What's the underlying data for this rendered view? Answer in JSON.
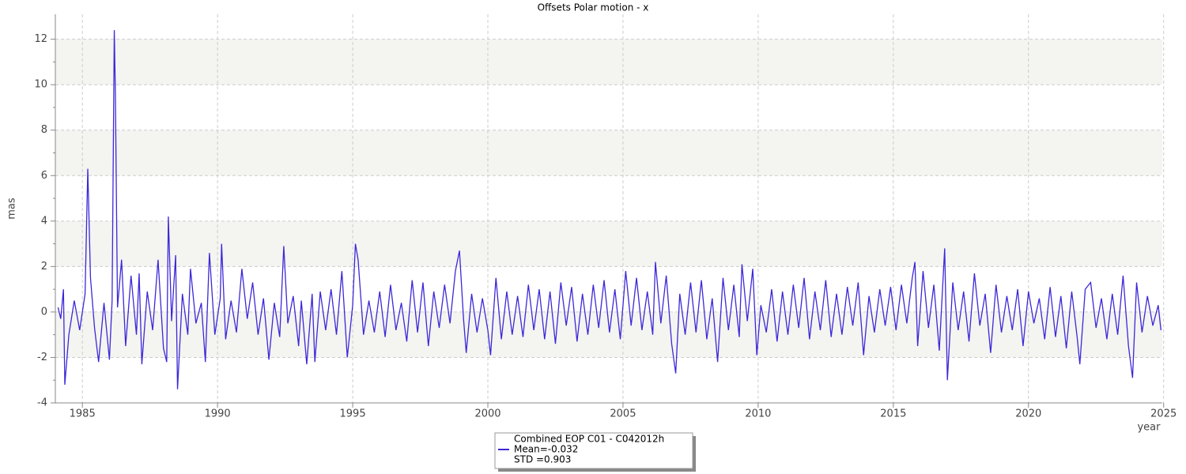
{
  "chart_data": {
    "type": "line",
    "title": "Offsets Polar motion - x",
    "y_label": "mas",
    "x_label": "year",
    "xlim": [
      1984.0,
      2024.95
    ],
    "ylim": [
      -4,
      13.1
    ],
    "xticks": [
      1985,
      1990,
      1995,
      2000,
      2005,
      2010,
      2015,
      2020,
      2025
    ],
    "yticks": [
      -4,
      -2,
      0,
      2,
      4,
      6,
      8,
      10,
      12
    ],
    "grid": true,
    "legend": "bottom",
    "legend_notes": [
      "Mean=-0.032",
      "STD =0.903"
    ],
    "x": [
      1984.1,
      1984.2,
      1984.3,
      1984.35,
      1984.5,
      1984.7,
      1984.9,
      1985.1,
      1985.2,
      1985.3,
      1985.45,
      1985.6,
      1985.8,
      1986.0,
      1986.1,
      1986.18,
      1986.22,
      1986.3,
      1986.45,
      1986.6,
      1986.8,
      1987.0,
      1987.1,
      1987.2,
      1987.4,
      1987.6,
      1987.8,
      1988.0,
      1988.12,
      1988.18,
      1988.3,
      1988.45,
      1988.52,
      1988.7,
      1988.9,
      1989.0,
      1989.2,
      1989.4,
      1989.55,
      1989.7,
      1989.9,
      1990.1,
      1990.15,
      1990.3,
      1990.5,
      1990.7,
      1990.9,
      1991.1,
      1991.3,
      1991.5,
      1991.7,
      1991.9,
      1992.1,
      1992.3,
      1992.45,
      1992.6,
      1992.8,
      1993.0,
      1993.1,
      1993.3,
      1993.5,
      1993.6,
      1993.8,
      1994.0,
      1994.2,
      1994.4,
      1994.6,
      1994.8,
      1995.0,
      1995.1,
      1995.2,
      1995.4,
      1995.6,
      1995.8,
      1996.0,
      1996.2,
      1996.4,
      1996.6,
      1996.8,
      1997.0,
      1997.2,
      1997.4,
      1997.6,
      1997.8,
      1998.0,
      1998.2,
      1998.4,
      1998.6,
      1998.8,
      1998.95,
      1999.1,
      1999.2,
      1999.4,
      1999.6,
      1999.8,
      2000.0,
      2000.1,
      2000.3,
      2000.5,
      2000.7,
      2000.9,
      2001.1,
      2001.3,
      2001.5,
      2001.7,
      2001.9,
      2002.1,
      2002.3,
      2002.5,
      2002.7,
      2002.9,
      2003.1,
      2003.3,
      2003.5,
      2003.7,
      2003.9,
      2004.1,
      2004.3,
      2004.5,
      2004.7,
      2004.9,
      2005.1,
      2005.3,
      2005.5,
      2005.7,
      2005.9,
      2006.1,
      2006.2,
      2006.4,
      2006.6,
      2006.8,
      2006.95,
      2007.1,
      2007.3,
      2007.5,
      2007.7,
      2007.9,
      2008.1,
      2008.3,
      2008.5,
      2008.7,
      2008.9,
      2009.1,
      2009.3,
      2009.4,
      2009.6,
      2009.8,
      2009.95,
      2010.1,
      2010.3,
      2010.5,
      2010.7,
      2010.9,
      2011.1,
      2011.3,
      2011.5,
      2011.7,
      2011.9,
      2012.1,
      2012.3,
      2012.5,
      2012.7,
      2012.9,
      2013.1,
      2013.3,
      2013.5,
      2013.7,
      2013.9,
      2014.1,
      2014.3,
      2014.5,
      2014.7,
      2014.9,
      2015.1,
      2015.3,
      2015.5,
      2015.7,
      2015.8,
      2015.9,
      2016.1,
      2016.3,
      2016.5,
      2016.7,
      2016.9,
      2017.0,
      2017.2,
      2017.4,
      2017.6,
      2017.8,
      2018.0,
      2018.2,
      2018.4,
      2018.6,
      2018.8,
      2019.0,
      2019.2,
      2019.4,
      2019.6,
      2019.8,
      2020.0,
      2020.2,
      2020.4,
      2020.6,
      2020.8,
      2021.0,
      2021.2,
      2021.4,
      2021.6,
      2021.8,
      2021.9,
      2022.1,
      2022.3,
      2022.5,
      2022.7,
      2022.9,
      2023.1,
      2023.3,
      2023.5,
      2023.7,
      2023.85,
      2024.0,
      2024.2,
      2024.4,
      2024.6,
      2024.8,
      2024.9
    ],
    "series": [
      {
        "name": "Combined EOP C01 - C042012h",
        "color": "#3c28d8",
        "values": [
          0.2,
          -0.3,
          1.0,
          -3.2,
          -1.0,
          0.5,
          -0.8,
          0.8,
          6.3,
          1.5,
          -0.7,
          -2.2,
          0.4,
          -2.1,
          0.5,
          12.4,
          9.7,
          0.2,
          2.3,
          -1.5,
          1.6,
          -1.0,
          1.7,
          -2.3,
          0.9,
          -0.8,
          2.3,
          -1.6,
          -2.2,
          4.2,
          -0.4,
          2.5,
          -3.4,
          0.8,
          -1.0,
          1.9,
          -0.5,
          0.4,
          -2.2,
          2.6,
          -1.0,
          0.6,
          3.0,
          -1.2,
          0.5,
          -0.9,
          1.9,
          -0.3,
          1.3,
          -1.0,
          0.6,
          -2.1,
          0.4,
          -1.1,
          2.9,
          -0.5,
          0.7,
          -1.5,
          0.5,
          -2.3,
          0.8,
          -2.2,
          0.9,
          -0.8,
          1.0,
          -1.0,
          1.8,
          -2.0,
          0.3,
          3.0,
          2.3,
          -1.0,
          0.5,
          -0.9,
          0.9,
          -1.1,
          1.2,
          -0.8,
          0.4,
          -1.3,
          1.4,
          -0.9,
          1.3,
          -1.5,
          0.9,
          -0.7,
          1.2,
          -0.5,
          1.8,
          2.7,
          -0.3,
          -1.8,
          0.8,
          -0.9,
          0.6,
          -0.8,
          -1.9,
          1.5,
          -1.2,
          0.9,
          -1.0,
          0.7,
          -1.1,
          1.2,
          -0.8,
          1.0,
          -1.2,
          0.9,
          -1.4,
          1.3,
          -0.6,
          1.1,
          -1.3,
          0.8,
          -1.0,
          1.2,
          -0.7,
          1.4,
          -0.9,
          1.0,
          -1.2,
          1.8,
          -0.6,
          1.5,
          -0.8,
          0.9,
          -1.0,
          2.2,
          -0.5,
          1.6,
          -1.4,
          -2.7,
          0.8,
          -1.0,
          1.3,
          -0.9,
          1.4,
          -1.2,
          0.6,
          -2.2,
          1.5,
          -0.8,
          1.2,
          -1.1,
          2.1,
          -0.4,
          1.9,
          -1.9,
          0.3,
          -0.9,
          1.0,
          -1.3,
          0.9,
          -1.0,
          1.2,
          -0.7,
          1.5,
          -1.2,
          0.9,
          -0.8,
          1.4,
          -1.1,
          0.8,
          -1.0,
          1.1,
          -0.6,
          1.3,
          -1.9,
          0.7,
          -0.9,
          1.0,
          -0.6,
          1.1,
          -0.8,
          1.2,
          -0.5,
          1.5,
          2.2,
          -1.5,
          1.8,
          -0.7,
          1.2,
          -1.7,
          2.8,
          -3.0,
          1.3,
          -0.8,
          0.9,
          -1.3,
          1.7,
          -0.6,
          0.8,
          -1.8,
          1.2,
          -0.9,
          0.7,
          -0.8,
          1.0,
          -1.5,
          0.9,
          -0.5,
          0.6,
          -1.2,
          1.1,
          -1.1,
          0.7,
          -1.6,
          0.9,
          -1.1,
          -2.3,
          1.0,
          1.3,
          -0.7,
          0.6,
          -1.2,
          0.8,
          -1.0,
          1.6,
          -1.5,
          -2.9,
          1.3,
          -0.9,
          0.7,
          -0.6,
          0.3,
          -0.8
        ]
      }
    ]
  }
}
